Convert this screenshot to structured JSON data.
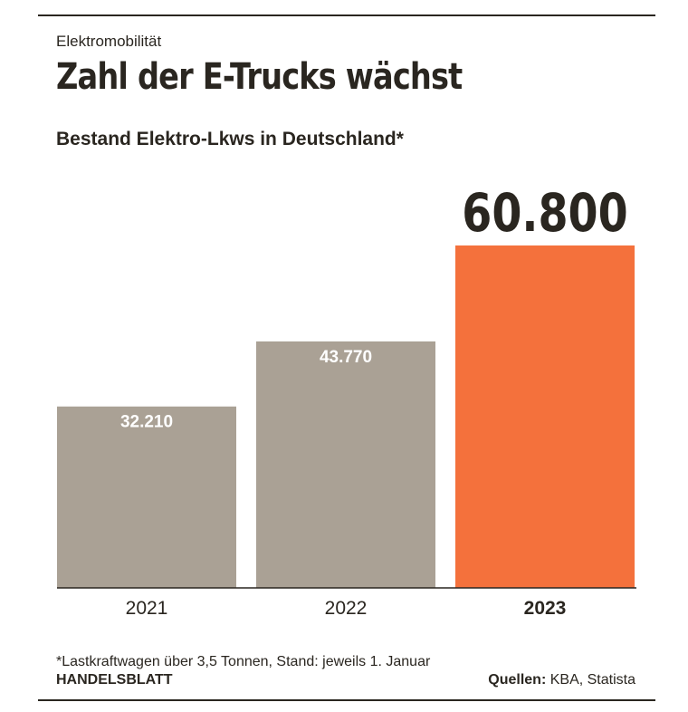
{
  "header": {
    "kicker": "Elektromobilität",
    "title": "Zahl der E-Trucks wächst",
    "subtitle": "Bestand Elektro-Lkws in Deutschland*"
  },
  "chart_data": {
    "type": "bar",
    "title": "Zahl der E-Trucks wächst",
    "subtitle": "Bestand Elektro-Lkws in Deutschland*",
    "categories": [
      "2021",
      "2022",
      "2023"
    ],
    "values": [
      32210,
      43770,
      60800
    ],
    "value_labels": [
      "32.210",
      "43.770",
      "60.800"
    ],
    "highlight_index": 2,
    "ylim": [
      0,
      70000
    ],
    "grid": false,
    "colors": {
      "bar": "#aaa195",
      "highlight": "#f4713c",
      "axis": "#2a2620",
      "label_inside": "#ffffff",
      "label_outside": "#2a2620"
    }
  },
  "footer": {
    "footnote": "*Lastkraftwagen über 3,5 Tonnen, Stand: jeweils 1. Januar",
    "brand": "HANDELSBLATT",
    "sources_label": "Quellen:",
    "sources_value": " KBA, Statista"
  }
}
